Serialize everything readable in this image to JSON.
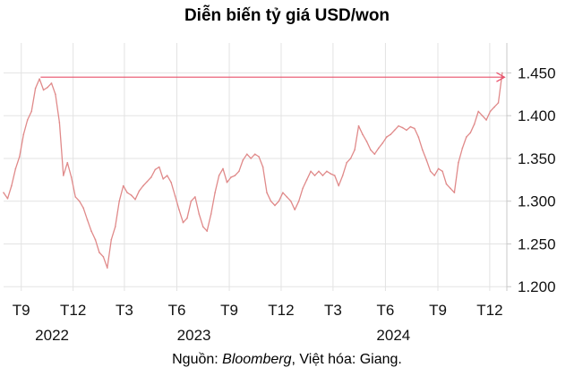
{
  "chart_data": {
    "type": "line",
    "title": "Diễn biến tỷ giá USD/won",
    "xlabel": "",
    "ylabel": "",
    "y_tick_labels": [
      "1.200",
      "1.250",
      "1.300",
      "1.350",
      "1.400",
      "1.450"
    ],
    "y_ticks": [
      1200,
      1250,
      1300,
      1350,
      1400,
      1450
    ],
    "ylim": [
      1195,
      1485
    ],
    "x_range": [
      "2022-08-01",
      "2024-12-31"
    ],
    "x_tick_labels": [
      {
        "label": "T9",
        "date": "2022-09-01"
      },
      {
        "label": "T12",
        "date": "2022-12-01"
      },
      {
        "label": "T3",
        "date": "2023-03-01"
      },
      {
        "label": "T6",
        "date": "2023-06-01"
      },
      {
        "label": "T9",
        "date": "2023-09-01"
      },
      {
        "label": "T12",
        "date": "2023-12-01"
      },
      {
        "label": "T3",
        "date": "2024-03-01"
      },
      {
        "label": "T6",
        "date": "2024-06-01"
      },
      {
        "label": "T9",
        "date": "2024-09-01"
      },
      {
        "label": "T12",
        "date": "2024-12-01"
      }
    ],
    "year_labels": [
      {
        "label": "2022",
        "date": "2022-10-25"
      },
      {
        "label": "2023",
        "date": "2023-07-01"
      },
      {
        "label": "2024",
        "date": "2024-06-15"
      }
    ],
    "grid": true,
    "line_color": "#e08a8a",
    "arrow_color": "#e8506a",
    "annotation_arrow": {
      "from": [
        "2022-10-05",
        1445
      ],
      "to": [
        "2024-12-27",
        1445
      ]
    },
    "series": [
      {
        "name": "",
        "points": [
          [
            "2022-08-01",
            1310
          ],
          [
            "2022-08-08",
            1303
          ],
          [
            "2022-08-15",
            1318
          ],
          [
            "2022-08-22",
            1338
          ],
          [
            "2022-08-29",
            1352
          ],
          [
            "2022-09-05",
            1378
          ],
          [
            "2022-09-12",
            1395
          ],
          [
            "2022-09-19",
            1405
          ],
          [
            "2022-09-26",
            1432
          ],
          [
            "2022-10-03",
            1443
          ],
          [
            "2022-10-10",
            1430
          ],
          [
            "2022-10-17",
            1433
          ],
          [
            "2022-10-24",
            1438
          ],
          [
            "2022-10-31",
            1425
          ],
          [
            "2022-11-07",
            1392
          ],
          [
            "2022-11-14",
            1330
          ],
          [
            "2022-11-21",
            1345
          ],
          [
            "2022-11-28",
            1328
          ],
          [
            "2022-12-05",
            1305
          ],
          [
            "2022-12-12",
            1300
          ],
          [
            "2022-12-19",
            1292
          ],
          [
            "2022-12-26",
            1278
          ],
          [
            "2023-01-02",
            1265
          ],
          [
            "2023-01-09",
            1255
          ],
          [
            "2023-01-16",
            1240
          ],
          [
            "2023-01-23",
            1235
          ],
          [
            "2023-01-30",
            1222
          ],
          [
            "2023-02-06",
            1255
          ],
          [
            "2023-02-13",
            1270
          ],
          [
            "2023-02-20",
            1300
          ],
          [
            "2023-02-27",
            1318
          ],
          [
            "2023-03-06",
            1310
          ],
          [
            "2023-03-13",
            1307
          ],
          [
            "2023-03-20",
            1302
          ],
          [
            "2023-03-27",
            1312
          ],
          [
            "2023-04-03",
            1318
          ],
          [
            "2023-04-10",
            1323
          ],
          [
            "2023-04-17",
            1328
          ],
          [
            "2023-04-24",
            1337
          ],
          [
            "2023-05-01",
            1340
          ],
          [
            "2023-05-08",
            1326
          ],
          [
            "2023-05-15",
            1330
          ],
          [
            "2023-05-22",
            1322
          ],
          [
            "2023-05-29",
            1306
          ],
          [
            "2023-06-05",
            1290
          ],
          [
            "2023-06-12",
            1275
          ],
          [
            "2023-06-19",
            1280
          ],
          [
            "2023-06-26",
            1300
          ],
          [
            "2023-07-03",
            1305
          ],
          [
            "2023-07-10",
            1285
          ],
          [
            "2023-07-17",
            1270
          ],
          [
            "2023-07-24",
            1265
          ],
          [
            "2023-07-31",
            1285
          ],
          [
            "2023-08-07",
            1310
          ],
          [
            "2023-08-14",
            1330
          ],
          [
            "2023-08-21",
            1338
          ],
          [
            "2023-08-28",
            1322
          ],
          [
            "2023-09-04",
            1328
          ],
          [
            "2023-09-11",
            1330
          ],
          [
            "2023-09-18",
            1335
          ],
          [
            "2023-09-25",
            1348
          ],
          [
            "2023-10-02",
            1355
          ],
          [
            "2023-10-09",
            1350
          ],
          [
            "2023-10-16",
            1355
          ],
          [
            "2023-10-23",
            1352
          ],
          [
            "2023-10-30",
            1340
          ],
          [
            "2023-11-06",
            1310
          ],
          [
            "2023-11-13",
            1300
          ],
          [
            "2023-11-20",
            1295
          ],
          [
            "2023-11-27",
            1300
          ],
          [
            "2023-12-04",
            1310
          ],
          [
            "2023-12-11",
            1305
          ],
          [
            "2023-12-18",
            1300
          ],
          [
            "2023-12-25",
            1290
          ],
          [
            "2024-01-01",
            1300
          ],
          [
            "2024-01-08",
            1315
          ],
          [
            "2024-01-15",
            1325
          ],
          [
            "2024-01-22",
            1335
          ],
          [
            "2024-01-29",
            1330
          ],
          [
            "2024-02-05",
            1335
          ],
          [
            "2024-02-12",
            1330
          ],
          [
            "2024-02-19",
            1335
          ],
          [
            "2024-02-26",
            1332
          ],
          [
            "2024-03-04",
            1330
          ],
          [
            "2024-03-11",
            1318
          ],
          [
            "2024-03-18",
            1330
          ],
          [
            "2024-03-25",
            1345
          ],
          [
            "2024-04-01",
            1350
          ],
          [
            "2024-04-08",
            1360
          ],
          [
            "2024-04-15",
            1388
          ],
          [
            "2024-04-22",
            1378
          ],
          [
            "2024-04-29",
            1370
          ],
          [
            "2024-05-06",
            1360
          ],
          [
            "2024-05-13",
            1355
          ],
          [
            "2024-05-20",
            1362
          ],
          [
            "2024-05-27",
            1368
          ],
          [
            "2024-06-03",
            1375
          ],
          [
            "2024-06-10",
            1378
          ],
          [
            "2024-06-17",
            1383
          ],
          [
            "2024-06-24",
            1388
          ],
          [
            "2024-07-01",
            1386
          ],
          [
            "2024-07-08",
            1383
          ],
          [
            "2024-07-15",
            1387
          ],
          [
            "2024-07-22",
            1385
          ],
          [
            "2024-07-29",
            1375
          ],
          [
            "2024-08-05",
            1360
          ],
          [
            "2024-08-12",
            1348
          ],
          [
            "2024-08-19",
            1335
          ],
          [
            "2024-08-26",
            1330
          ],
          [
            "2024-09-02",
            1338
          ],
          [
            "2024-09-09",
            1335
          ],
          [
            "2024-09-16",
            1320
          ],
          [
            "2024-09-23",
            1315
          ],
          [
            "2024-09-30",
            1310
          ],
          [
            "2024-10-07",
            1345
          ],
          [
            "2024-10-14",
            1362
          ],
          [
            "2024-10-21",
            1375
          ],
          [
            "2024-10-28",
            1380
          ],
          [
            "2024-11-04",
            1390
          ],
          [
            "2024-11-11",
            1405
          ],
          [
            "2024-11-18",
            1400
          ],
          [
            "2024-11-25",
            1395
          ],
          [
            "2024-12-02",
            1405
          ],
          [
            "2024-12-09",
            1410
          ],
          [
            "2024-12-16",
            1415
          ],
          [
            "2024-12-23",
            1450
          ]
        ]
      }
    ]
  },
  "source": {
    "prefix": "Nguồn: ",
    "name": "Bloomberg",
    "suffix": ", Việt hóa: Giang."
  }
}
